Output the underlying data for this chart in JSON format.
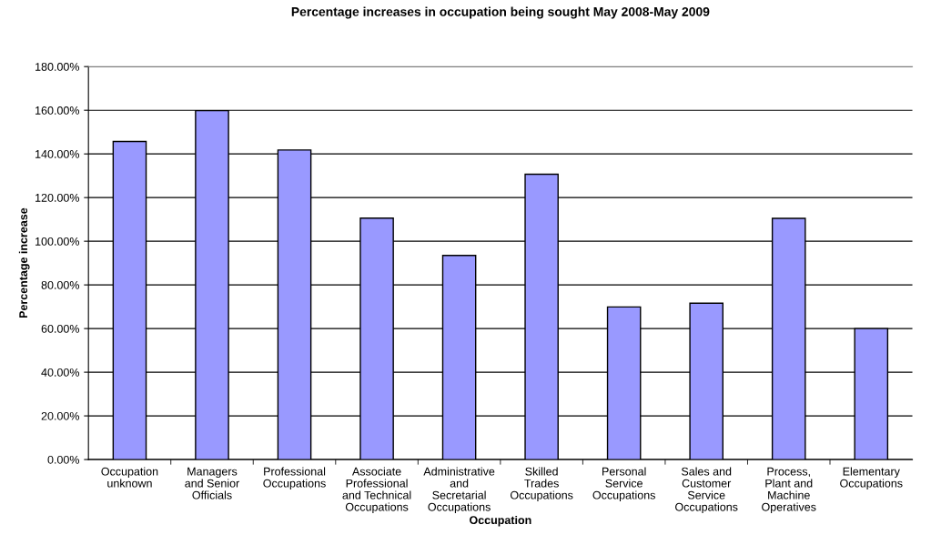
{
  "chart_data": {
    "type": "bar",
    "title": "Percentage increases in occupation being sought May 2008-May 2009",
    "xlabel": "Occupation",
    "ylabel": "Percentage increase",
    "categories": [
      "Occupation\nunknown",
      "Managers\nand Senior\nOfficials",
      "Professional\nOccupations",
      "Associate\nProfessional\nand Technical\nOccupations",
      "Administrative\nand\nSecretarial\nOccupations",
      "Skilled\nTrades\nOccupations",
      "Personal\nService\nOccupations",
      "Sales and\nCustomer\nService\nOccupations",
      "Process,\nPlant and\nMachine\nOperatives",
      "Elementary\nOccupations"
    ],
    "values": [
      145.7,
      159.8,
      141.8,
      110.6,
      93.5,
      130.7,
      69.9,
      71.6,
      110.5,
      60.0
    ],
    "color": "#9999ff",
    "ylim": [
      0,
      180
    ],
    "yticks": [
      {
        "value": 0,
        "label": "0.00%"
      },
      {
        "value": 20,
        "label": "20.00%"
      },
      {
        "value": 40,
        "label": "40.00%"
      },
      {
        "value": 60,
        "label": "60.00%"
      },
      {
        "value": 80,
        "label": "80.00%"
      },
      {
        "value": 100,
        "label": "100.00%"
      },
      {
        "value": 120,
        "label": "120.00%"
      },
      {
        "value": 140,
        "label": "140.00%"
      },
      {
        "value": 160,
        "label": "160.00%"
      },
      {
        "value": 180,
        "label": "180.00%"
      }
    ],
    "grid": "y",
    "legend": false
  }
}
